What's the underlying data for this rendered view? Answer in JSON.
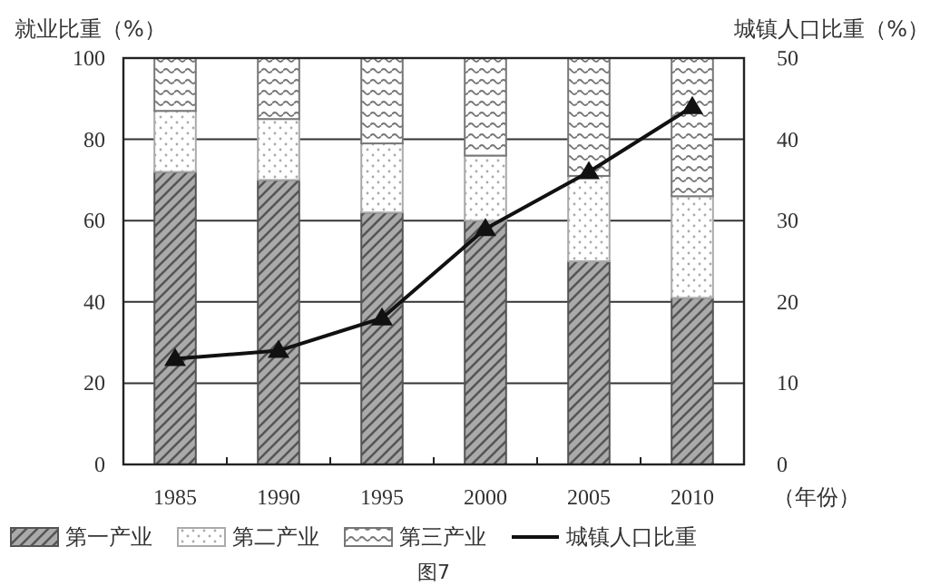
{
  "chart_data": {
    "type": "bar",
    "stacked": true,
    "categories": [
      "1985",
      "1990",
      "1995",
      "2000",
      "2005",
      "2010"
    ],
    "xlabel": "（年份）",
    "ylabel": "就业比重（%）",
    "y2label": "城镇人口比重（%）",
    "ylim": [
      0,
      100
    ],
    "yticks": [
      0,
      20,
      40,
      60,
      80,
      100
    ],
    "y2lim": [
      0,
      50
    ],
    "y2ticks": [
      0,
      10,
      20,
      30,
      40,
      50
    ],
    "grid": "y",
    "legend": "bottom",
    "annotations": [
      "图7"
    ],
    "series": [
      {
        "name": "第一产业",
        "color": "#555555",
        "values": [
          72,
          70,
          62,
          60,
          50,
          41
        ]
      },
      {
        "name": "第二产业",
        "color": "#aaaaaa",
        "values": [
          15,
          15,
          17,
          16,
          21,
          25
        ]
      },
      {
        "name": "第三产业",
        "color": "#777777",
        "values": [
          13,
          15,
          21,
          24,
          29,
          34
        ]
      },
      {
        "name": "城镇人口比重",
        "type": "line",
        "axis": "y2",
        "color": "#111111",
        "marker": "triangle",
        "values": [
          13,
          14,
          18,
          29,
          36,
          44
        ]
      }
    ]
  }
}
